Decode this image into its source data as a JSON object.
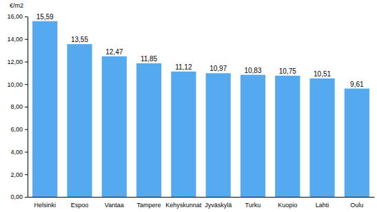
{
  "chart_data": {
    "type": "bar",
    "y_label": "€/m2",
    "categories": [
      "Helsinki",
      "Espoo",
      "Vantaa",
      "Tampere",
      "Kehyskunnat",
      "Jyväskylä",
      "Turku",
      "Kuopio",
      "Lahti",
      "Oulu"
    ],
    "values": [
      15.59,
      13.55,
      12.47,
      11.85,
      11.12,
      10.97,
      10.83,
      10.75,
      10.51,
      9.61
    ],
    "value_labels": [
      "15,59",
      "13,55",
      "12,47",
      "11,85",
      "11,12",
      "10,97",
      "10,83",
      "10,75",
      "10,51",
      "9,61"
    ],
    "data_labels": true,
    "color": "#55a9ee",
    "ylim": [
      0,
      16
    ],
    "yticks": [
      {
        "value": 0,
        "label": "0,00"
      },
      {
        "value": 2,
        "label": "2,00"
      },
      {
        "value": 4,
        "label": "4,00"
      },
      {
        "value": 6,
        "label": "6,00"
      },
      {
        "value": 8,
        "label": "8,00"
      },
      {
        "value": 10,
        "label": "10,00"
      },
      {
        "value": 12,
        "label": "12,00"
      },
      {
        "value": 14,
        "label": "14,00"
      },
      {
        "value": 16,
        "label": "16,00"
      }
    ],
    "grid": false
  }
}
